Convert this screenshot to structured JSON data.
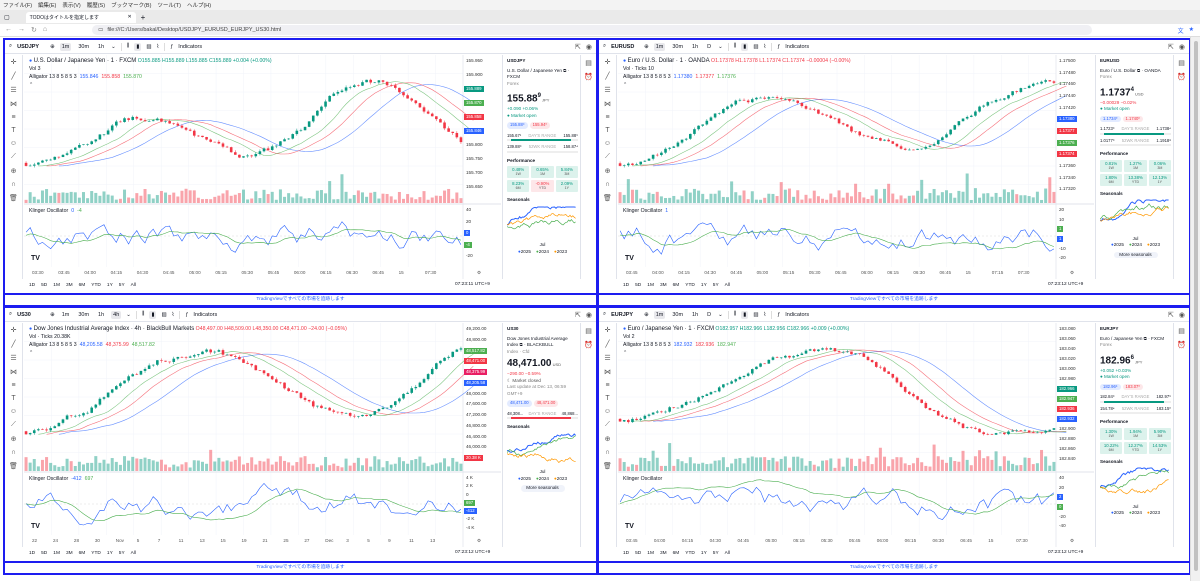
{
  "browser": {
    "menu": [
      "ファイル(F)",
      "編集(E)",
      "表示(V)",
      "履歴(S)",
      "ブックマーク(B)",
      "ツール(T)",
      "ヘルプ(H)"
    ],
    "tab_title": "TODOはタイトルを指定します",
    "url": "file:///C:/Users/bakal/Desktop/USDJPY_EURUSD_EURJPY_US30.html"
  },
  "colors": {
    "up": "#089981",
    "down": "#f23645",
    "blue": "#2962ff",
    "frame": "#1d1df0"
  },
  "common": {
    "indicators": "Indicators",
    "ranges": [
      "1D",
      "5D",
      "1M",
      "3M",
      "6M",
      "YTD",
      "1Y",
      "5Y",
      "All"
    ],
    "footer": "TradingViewですべての市場を追跡します",
    "performance": "Performance",
    "seasonals": "Seasonals",
    "seasonal_month": "Jul",
    "legend": [
      "2025",
      "2024",
      "2023"
    ],
    "more_seasonals": "More seasonals",
    "days_range": "DAY'S RANGE",
    "wk_range": "52WK RANGE"
  },
  "panels": [
    {
      "symbol": "USDJPY",
      "tfs": [
        "1m",
        "30m",
        "1h"
      ],
      "active": "1m",
      "title": "U.S. Dollar / Japanese Yen · 1 · FXCM",
      "ohlc": "O155.885 H155.889 L155.885 C155.889 +0.004 (+0.00%)",
      "up": true,
      "vol": "Vol  3",
      "alligator": "Alligator 13 8 5 8 5 3",
      "all_vals": [
        "155.846",
        "155.858",
        "155.870"
      ],
      "price_labels": [
        "155.950",
        "155.900",
        "155.800",
        "155.750",
        "155.700",
        "155.650"
      ],
      "tags": [
        {
          "v": "155.889",
          "c": "#089981"
        },
        {
          "v": "155.870",
          "c": "#4caf50"
        },
        {
          "v": "155.858",
          "c": "#f23645"
        },
        {
          "v": "155.846",
          "c": "#2962ff"
        }
      ],
      "osc_label": "Klinger Oscillator",
      "osc_vals": [
        "0",
        "-4"
      ],
      "osc_axis": [
        "40",
        "20",
        "-20"
      ],
      "osc_tags": [
        {
          "v": "0",
          "c": "#2962ff"
        },
        {
          "v": "-4",
          "c": "#4caf50"
        }
      ],
      "times": [
        "03:30",
        "03:45",
        "04:00",
        "04:15",
        "04:30",
        "04:45",
        "05:00",
        "05:15",
        "05:30",
        "05:45",
        "06:00",
        "06:15",
        "06:30",
        "06:45",
        "15",
        "07:30"
      ],
      "stamp": "07:23:11 UTC+9",
      "side": {
        "sym": "USDJPY",
        "name": "U.S. Dollar / Japanese Yen ⧉ · FXCM",
        "type": "Forex",
        "price": "155.88",
        "sup": "9",
        "cur": "JPY",
        "chg": "+0.090  +0.06%",
        "up": true,
        "status": "● Market open",
        "bid": "155.88⁹",
        "ask": "155.94⁰",
        "dlo": "155.67¹",
        "dhi": "155.88⁹",
        "wlo": "139.88⁹",
        "whi": "158.87⁴",
        "perf": [
          [
            "0.48%",
            "1W"
          ],
          [
            "0.65%",
            "1M"
          ],
          [
            "5.84%",
            "3M"
          ],
          [
            "8.23%",
            "6M"
          ],
          [
            "-0.90%",
            "YTD"
          ],
          [
            "2.09%",
            "1Y"
          ]
        ],
        "more": false
      }
    },
    {
      "symbol": "EURUSD",
      "tfs": [
        "1m",
        "30m",
        "1h",
        "D"
      ],
      "active": "1m",
      "title": "Euro / U.S. Dollar · 1 · OANDA",
      "ohlc": "O1.17378 H1.17378 L1.17374 C1.17374 −0.00004 (−0.00%)",
      "up": false,
      "vol": "Vol · Ticks  10",
      "alligator": "Alligator 13 8 5 8 5 3",
      "all_vals": [
        "1.17380",
        "1.17377",
        "1.17376"
      ],
      "price_labels": [
        "1.17500",
        "1.17480",
        "1.17460",
        "1.17440",
        "1.17420",
        "1.17360",
        "1.17340",
        "1.17320"
      ],
      "tags": [
        {
          "v": "1.17380",
          "c": "#2962ff"
        },
        {
          "v": "1.17377",
          "c": "#f23645"
        },
        {
          "v": "1.17376",
          "c": "#4caf50"
        },
        {
          "v": "1.17374",
          "c": "#f23645"
        }
      ],
      "osc_label": "Klinger Oscillator",
      "osc_vals": [
        "1"
      ],
      "osc_axis": [
        "20",
        "10",
        "-10",
        "-20"
      ],
      "osc_tags": [
        {
          "v": "1",
          "c": "#4caf50"
        },
        {
          "v": "1",
          "c": "#2962ff"
        }
      ],
      "times": [
        "03:45",
        "04:00",
        "04:15",
        "04:30",
        "04:45",
        "05:00",
        "05:15",
        "05:30",
        "05:45",
        "06:00",
        "06:15",
        "06:30",
        "06:45",
        "15",
        "07:15",
        "07:30"
      ],
      "stamp": "07:23:12 UTC+9",
      "side": {
        "sym": "EURUSD",
        "name": "Euro / U.S. Dollar ⧉ · OANDA",
        "type": "Forex",
        "price": "1.1737",
        "sup": "4",
        "cur": "USD",
        "chg": "−0.00029  −0.02%",
        "up": false,
        "status": "● Market open",
        "bid": "1.1734⁰",
        "ask": "1.1740⁰",
        "dlo": "1.1723⁹",
        "dhi": "1.1738⁴",
        "wlo": "1.0177⁹",
        "whi": "1.1918⁸",
        "perf": [
          [
            "0.81%",
            "1W"
          ],
          [
            "1.27%",
            "1M"
          ],
          [
            "0.06%",
            "3M"
          ],
          [
            "1.80%",
            "6M"
          ],
          [
            "13.38%",
            "YTD"
          ],
          [
            "12.13%",
            "1Y"
          ]
        ],
        "more": true
      }
    },
    {
      "symbol": "US30",
      "tfs": [
        "1m",
        "30m",
        "1h",
        "4h"
      ],
      "active": "4h",
      "title": "Dow Jones Industrial Average Index · 4h · BlackBull Markets",
      "ohlc": "O48,497.00 H48,509.00 L48,350.00 C48,471.00 −24.00 (−0.05%)",
      "up": false,
      "vol": "Vol · Ticks  20.38K",
      "alligator": "Alligator 13 8 5 8 5 3",
      "all_vals": [
        "48,205.58",
        "48,375.99",
        "48,517.82"
      ],
      "price_labels": [
        "49,200.00",
        "48,800.00",
        "48,000.00",
        "47,600.00",
        "47,200.00",
        "46,800.00",
        "46,400.00",
        "46,000.00"
      ],
      "tags": [
        {
          "v": "48,517.82",
          "c": "#4caf50"
        },
        {
          "v": "48,471.00",
          "c": "#f23645"
        },
        {
          "v": "48,375.99",
          "c": "#e91e63"
        },
        {
          "v": "48,205.58",
          "c": "#2962ff"
        }
      ],
      "vol_tag": "20.38 K",
      "osc_label": "Klinger Oscillator",
      "osc_vals": [
        "-412",
        "697"
      ],
      "osc_axis": [
        "4 K",
        "2 K",
        "0",
        "-2 K",
        "-4 K"
      ],
      "osc_tags": [
        {
          "v": "697",
          "c": "#4caf50"
        },
        {
          "v": "-412",
          "c": "#2962ff"
        }
      ],
      "times": [
        "22",
        "24",
        "28",
        "30",
        "Nov",
        "5",
        "7",
        "11",
        "13",
        "15",
        "19",
        "21",
        "25",
        "27",
        "Dec",
        "3",
        "5",
        "9",
        "11",
        "13"
      ],
      "stamp": "07:23:12 UTC+9",
      "side": {
        "sym": "US30",
        "name": "Dow Jones Industrial Average Index ⧉ · BLACKBULL",
        "type": "Index · Cfd",
        "price": "48,471.00",
        "sup": "",
        "cur": "USD",
        "chg": "−290.00  −0.59%",
        "up": false,
        "status": "☾ Market closed",
        "update": "Last update at Dec 13, 06:59 GMT+9",
        "bid": "48,471.00",
        "ask": "48,471.00",
        "dlo": "48,308...",
        "dhi": "48,868...",
        "perf": [],
        "more": true
      }
    },
    {
      "symbol": "EURJPY",
      "tfs": [
        "1m",
        "30m",
        "1h",
        "D"
      ],
      "active": "1m",
      "title": "Euro / Japanese Yen · 1 · FXCM",
      "ohlc": "O182.957 H182.966 L182.956 C182.966 +0.009 (+0.00%)",
      "up": true,
      "vol": "Vol  2",
      "alligator": "Alligator 13 8 5 8 5 3",
      "all_vals": [
        "182.932",
        "182.936",
        "182.947"
      ],
      "price_labels": [
        "183.080",
        "183.060",
        "183.040",
        "183.020",
        "183.000",
        "182.980",
        "182.900",
        "182.880",
        "182.860",
        "182.840"
      ],
      "tags": [
        {
          "v": "182.966",
          "c": "#089981"
        },
        {
          "v": "182.947",
          "c": "#4caf50"
        },
        {
          "v": "182.936",
          "c": "#f23645"
        },
        {
          "v": "182.932",
          "c": "#2962ff"
        }
      ],
      "osc_label": "Klinger Oscillator",
      "osc_vals": [],
      "osc_axis": [
        "40",
        "20",
        "-20",
        "-40"
      ],
      "osc_tags": [
        {
          "v": "2",
          "c": "#2962ff"
        },
        {
          "v": "0",
          "c": "#4caf50"
        }
      ],
      "times": [
        "03:45",
        "04:00",
        "04:15",
        "04:30",
        "04:45",
        "05:00",
        "05:15",
        "05:30",
        "05:45",
        "06:00",
        "06:15",
        "06:30",
        "06:45",
        "15",
        "07:30"
      ],
      "stamp": "07:23:12 UTC+9",
      "side": {
        "sym": "EURJPY",
        "name": "Euro / Japanese Yen ⧉ · FXCM",
        "type": "Forex",
        "price": "182.96",
        "sup": "6",
        "cur": "JPY",
        "chg": "+0.052  +0.03%",
        "up": true,
        "status": "● Market open",
        "bid": "182.96⁶",
        "ask": "183.07⁰",
        "dlo": "182.84⁹",
        "dhi": "182.97⁹",
        "wlo": "154.78⁴",
        "whi": "183.15⁰",
        "perf": [
          [
            "1.30%",
            "1W"
          ],
          [
            "1.94%",
            "1M"
          ],
          [
            "5.90%",
            "3M"
          ],
          [
            "10.22%",
            "6M"
          ],
          [
            "12.27%",
            "YTD"
          ],
          [
            "14.53%",
            "1Y"
          ]
        ],
        "more": false
      }
    }
  ]
}
